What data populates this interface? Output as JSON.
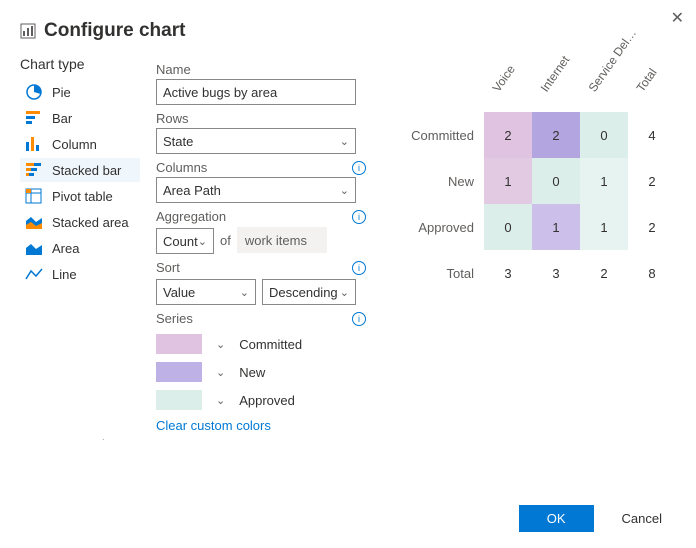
{
  "dialog": {
    "title": "Configure chart"
  },
  "sidebar": {
    "heading": "Chart type",
    "items": [
      {
        "label": "Pie"
      },
      {
        "label": "Bar"
      },
      {
        "label": "Column"
      },
      {
        "label": "Stacked bar"
      },
      {
        "label": "Pivot table"
      },
      {
        "label": "Stacked area"
      },
      {
        "label": "Area"
      },
      {
        "label": "Line"
      }
    ],
    "selected_index": 3
  },
  "form": {
    "name_label": "Name",
    "name_value": "Active bugs by area",
    "rows_label": "Rows",
    "rows_value": "State",
    "columns_label": "Columns",
    "columns_value": "Area Path",
    "aggregation_label": "Aggregation",
    "aggregation_value": "Count",
    "aggregation_of_text": "of",
    "aggregation_of_value": "work items",
    "sort_label": "Sort",
    "sort_by": "Value",
    "sort_dir": "Descending",
    "series_label": "Series",
    "series": [
      {
        "label": "Committed",
        "color": "#dfc3e1"
      },
      {
        "label": "New",
        "color": "#beb1e6"
      },
      {
        "label": "Approved",
        "color": "#dceeea"
      }
    ],
    "clear_link": "Clear custom colors"
  },
  "preview": {
    "type": "pivot-table",
    "columns": [
      "Voice",
      "Internet",
      "Service Del…",
      "Total"
    ],
    "rows": [
      "Committed",
      "New",
      "Approved",
      "Total"
    ],
    "cells": [
      [
        2,
        2,
        0,
        4
      ],
      [
        1,
        0,
        1,
        2
      ],
      [
        0,
        1,
        1,
        2
      ],
      [
        3,
        3,
        2,
        8
      ]
    ],
    "cell_colors": [
      [
        "#dfc3e1",
        "#b3a5e0",
        "#dceeea",
        "#ffffff"
      ],
      [
        "#e2cae3",
        "#dceeea",
        "#e7f3f0",
        "#ffffff"
      ],
      [
        "#dceeea",
        "#ccbfe9",
        "#e7f3f0",
        "#ffffff"
      ],
      [
        "#ffffff",
        "#ffffff",
        "#ffffff",
        "#ffffff"
      ]
    ],
    "colhdr_color": "#605e5c",
    "rowhdr_color": "#605e5c",
    "fontsize": 13
  },
  "footer": {
    "ok": "OK",
    "cancel": "Cancel"
  },
  "icons": {
    "chevron": "⌄"
  }
}
